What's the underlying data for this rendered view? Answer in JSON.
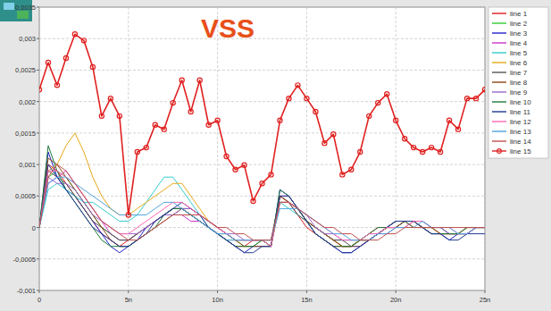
{
  "chart_data": {
    "type": "line",
    "title": "VSS",
    "x": [
      0,
      0.5,
      1,
      1.5,
      2,
      2.5,
      3,
      3.5,
      4,
      4.5,
      5,
      5.5,
      6,
      6.5,
      7,
      7.5,
      8,
      8.5,
      9,
      9.5,
      10,
      10.5,
      11,
      11.5,
      12,
      12.5,
      13,
      13.5,
      14,
      14.5,
      15,
      15.5,
      16,
      16.5,
      17,
      17.5,
      18,
      18.5,
      19,
      19.5,
      20,
      20.5,
      21,
      21.5,
      22,
      22.5,
      23,
      23.5,
      24,
      24.5,
      25
    ],
    "xlim": [
      0,
      25
    ],
    "xticks": [
      0,
      {
        "value": 5,
        "label": "5n"
      },
      {
        "value": 10,
        "label": "10n"
      },
      {
        "value": 15,
        "label": "15n"
      },
      {
        "value": 20,
        "label": "20n"
      },
      {
        "value": 25,
        "label": "25n"
      }
    ],
    "ylim": [
      -0.001,
      0.0035
    ],
    "yticks": [
      {
        "value": -0.001,
        "label": "-0,001"
      },
      {
        "value": -0.0005,
        "label": "-0,0005"
      },
      0,
      {
        "value": 0.0005,
        "label": "0,0005"
      },
      {
        "value": 0.001,
        "label": "0,001"
      },
      {
        "value": 0.0015,
        "label": "0,0015"
      },
      {
        "value": 0.002,
        "label": "0,002"
      },
      {
        "value": 0.0025,
        "label": "0,0025"
      },
      {
        "value": 0.003,
        "label": "0,003"
      },
      {
        "value": 0.0035,
        "label": "0,0035"
      }
    ],
    "grid": true,
    "legend": "right",
    "series": [
      {
        "name": "line 1",
        "color": "#e31a1c",
        "values": [
          0,
          0.001,
          0.0009,
          0.0007,
          0.0005,
          0.0003,
          0.0001,
          -0.0001,
          -0.0002,
          -0.0003,
          -0.0002,
          -0.0001,
          0,
          0.0001,
          0.0002,
          0.0003,
          0.0003,
          0.0002,
          0.0001,
          0,
          -0.0001,
          -0.0002,
          -0.0003,
          -0.0003,
          -0.0002,
          -0.0002,
          -0.0003,
          0.0005,
          0.0004,
          0.0002,
          0,
          -0.0001,
          -0.0002,
          -0.0003,
          -0.0003,
          -0.0003,
          -0.0002,
          -0.0001,
          0,
          0,
          0.0001,
          0.0001,
          0,
          0,
          -0.0001,
          -0.0001,
          -0.0001,
          -0.0001,
          0,
          0,
          0
        ]
      },
      {
        "name": "line 2",
        "color": "#33cc33",
        "values": [
          0,
          0.0008,
          0.0009,
          0.0008,
          0.0006,
          0.0004,
          0.0002,
          0,
          -0.0001,
          -0.0002,
          -0.0002,
          -0.0001,
          0,
          0.0001,
          0.0002,
          0.0002,
          0.0002,
          0.0002,
          0.0001,
          0,
          -0.0001,
          -0.0001,
          -0.0002,
          -0.0003,
          -0.0003,
          -0.0002,
          -0.0003,
          0.0004,
          0.0004,
          0.0003,
          0.0001,
          0,
          -0.0001,
          -0.0002,
          -0.0003,
          -0.0003,
          -0.0002,
          -0.0002,
          -0.0001,
          0,
          0,
          0.0001,
          0.0001,
          0,
          0,
          -0.0001,
          -0.0001,
          -0.0001,
          -0.0001,
          0,
          0
        ]
      },
      {
        "name": "line 3",
        "color": "#2222cc",
        "values": [
          0,
          0.0012,
          0.0008,
          0.0006,
          0.0005,
          0.0003,
          0.0001,
          -0.0001,
          -0.0003,
          -0.0004,
          -0.0003,
          -0.0002,
          0,
          0.0001,
          0.0002,
          0.0003,
          0.0003,
          0.0002,
          0.0001,
          0,
          -0.0001,
          -0.0002,
          -0.0003,
          -0.0004,
          -0.0003,
          -0.0003,
          -0.0003,
          0.0006,
          0.0005,
          0.0003,
          0.0001,
          -0.0001,
          -0.0002,
          -0.0003,
          -0.0004,
          -0.0004,
          -0.0003,
          -0.0002,
          -0.0001,
          0,
          0.0001,
          0.0001,
          0.0001,
          0,
          -0.0001,
          -0.0001,
          -0.0002,
          -0.0001,
          -0.0001,
          0,
          0
        ]
      },
      {
        "name": "line 4",
        "color": "#cc33cc",
        "values": [
          0,
          0.0007,
          0.0008,
          0.0009,
          0.0007,
          0.0005,
          0.0003,
          0.0001,
          -0.0001,
          -0.0002,
          -0.0002,
          -0.0001,
          0,
          0.0001,
          0.0002,
          0.0002,
          0.0002,
          0.0001,
          0.0001,
          0,
          -0.0001,
          -0.0002,
          -0.0002,
          -0.0002,
          -0.0002,
          -0.0002,
          -0.0003,
          0.0005,
          0.0005,
          0.0003,
          0.0001,
          0,
          -0.0001,
          -0.0002,
          -0.0003,
          -0.0003,
          -0.0003,
          -0.0002,
          -0.0001,
          0,
          0,
          0.0001,
          0.0001,
          0,
          0,
          -0.0001,
          -0.0001,
          -0.0001,
          0,
          0,
          0
        ]
      },
      {
        "name": "line 5",
        "color": "#33cccc",
        "values": [
          0,
          0.0006,
          0.0007,
          0.0006,
          0.0005,
          0.0004,
          0.0004,
          0.0003,
          0.0002,
          0.0001,
          0.0001,
          0.0002,
          0.0004,
          0.0006,
          0.0008,
          0.0008,
          0.0006,
          0.0004,
          0.0002,
          0,
          -0.0001,
          -0.0002,
          -0.0002,
          -0.0002,
          -0.0002,
          -0.0002,
          -0.0003,
          0.0004,
          0.0003,
          0.0002,
          0.0001,
          0,
          -0.0001,
          -0.0002,
          -0.0002,
          -0.0002,
          -0.0002,
          -0.0001,
          -0.0001,
          0,
          0,
          0.0001,
          0.0001,
          0,
          0,
          0,
          -0.0001,
          -0.0001,
          0,
          0,
          0
        ]
      },
      {
        "name": "line 6",
        "color": "#e6a817",
        "values": [
          0,
          0.0009,
          0.001,
          0.0013,
          0.0015,
          0.0012,
          0.0008,
          0.0005,
          0.0003,
          0.0002,
          0.0002,
          0.0003,
          0.0004,
          0.0005,
          0.0006,
          0.0007,
          0.0007,
          0.0005,
          0.0003,
          0.0001,
          0,
          -0.0001,
          -0.0002,
          -0.0002,
          -0.0002,
          -0.0002,
          -0.0003,
          0.0004,
          0.0004,
          0.0003,
          0.0001,
          0,
          -0.0001,
          -0.0002,
          -0.0003,
          -0.0003,
          -0.0002,
          -0.0002,
          -0.0001,
          0,
          0,
          0,
          0.0001,
          0,
          0,
          -0.0001,
          -0.0001,
          -0.0001,
          0,
          0,
          0
        ]
      },
      {
        "name": "line 7",
        "color": "#555555",
        "values": [
          0,
          0.0009,
          0.0008,
          0.0007,
          0.0005,
          0.0003,
          0.0001,
          0,
          -0.0001,
          -0.0002,
          -0.0002,
          -0.0001,
          0,
          0.0001,
          0.0002,
          0.0003,
          0.0003,
          0.0003,
          0.0002,
          0.0001,
          0,
          -0.0001,
          -0.0002,
          -0.0002,
          -0.0002,
          -0.0002,
          -0.0002,
          0.0005,
          0.0004,
          0.0002,
          0.0001,
          0,
          -0.0001,
          -0.0002,
          -0.0002,
          -0.0003,
          -0.0003,
          -0.0002,
          -0.0001,
          0,
          0,
          0.0001,
          0.0001,
          0.0001,
          0,
          0,
          -0.0001,
          -0.0001,
          -0.0001,
          0,
          0
        ]
      },
      {
        "name": "line 8",
        "color": "#8b4513",
        "values": [
          0,
          0.0011,
          0.001,
          0.0008,
          0.0006,
          0.0004,
          0.0002,
          0,
          -0.0002,
          -0.0003,
          -0.0003,
          -0.0002,
          -0.0001,
          0,
          0.0001,
          0.0002,
          0.0003,
          0.0002,
          0.0002,
          0.0001,
          0,
          -0.0001,
          -0.0002,
          -0.0003,
          -0.0003,
          -0.0003,
          -0.0003,
          0.0005,
          0.0004,
          0.0003,
          0.0001,
          0,
          -0.0001,
          -0.0002,
          -0.0003,
          -0.0003,
          -0.0002,
          -0.0002,
          -0.0001,
          0,
          0,
          0.0001,
          0.0001,
          0,
          0,
          -0.0001,
          -0.0001,
          -0.0001,
          -0.0001,
          0,
          0
        ]
      },
      {
        "name": "line 9",
        "color": "#9966cc",
        "values": [
          0,
          0.0008,
          0.0007,
          0.0007,
          0.0006,
          0.0004,
          0.0002,
          0.0001,
          0,
          -0.0001,
          -0.0001,
          -0.0001,
          0,
          0.0001,
          0.0002,
          0.0002,
          0.0003,
          0.0003,
          0.0002,
          0.0001,
          0,
          -0.0001,
          -0.0001,
          -0.0002,
          -0.0002,
          -0.0002,
          -0.0002,
          0.0004,
          0.0004,
          0.0003,
          0.0002,
          0,
          -0.0001,
          -0.0001,
          -0.0002,
          -0.0002,
          -0.0002,
          -0.0002,
          -0.0001,
          -0.0001,
          0,
          0,
          0.0001,
          0.0001,
          0,
          0,
          -0.0001,
          -0.0001,
          -0.0001,
          0,
          0
        ]
      },
      {
        "name": "line 10",
        "color": "#1f7a3a",
        "values": [
          0,
          0.0013,
          0.0009,
          0.0006,
          0.0004,
          0.0002,
          0,
          -0.0002,
          -0.0003,
          -0.0003,
          -0.0003,
          -0.0002,
          -0.0001,
          0,
          0.0002,
          0.0003,
          0.0003,
          0.0002,
          0.0001,
          0,
          -0.0001,
          -0.0002,
          -0.0003,
          -0.0003,
          -0.0003,
          -0.0002,
          -0.0003,
          0.0006,
          0.0005,
          0.0003,
          0.0001,
          -0.0001,
          -0.0002,
          -0.0003,
          -0.0003,
          -0.0003,
          -0.0002,
          -0.0001,
          0,
          0,
          0.0001,
          0.0001,
          0,
          0,
          -0.0001,
          -0.0001,
          -0.0001,
          -0.0001,
          0,
          0,
          0
        ]
      },
      {
        "name": "line 11",
        "color": "#1f3a93",
        "values": [
          0,
          0.001,
          0.0008,
          0.0006,
          0.0004,
          0.0002,
          0,
          -0.0001,
          -0.0002,
          -0.0003,
          -0.0003,
          -0.0002,
          -0.0001,
          0.0001,
          0.0002,
          0.0003,
          0.0004,
          0.0003,
          0.0002,
          0,
          -0.0001,
          -0.0002,
          -0.0003,
          -0.0004,
          -0.0004,
          -0.0003,
          -0.0003,
          0.0005,
          0.0005,
          0.0003,
          0.0001,
          -0.0001,
          -0.0002,
          -0.0003,
          -0.0004,
          -0.0004,
          -0.0003,
          -0.0002,
          -0.0001,
          0,
          0.0001,
          0.0001,
          0.0001,
          0,
          -0.0001,
          -0.0001,
          -0.0002,
          -0.0002,
          -0.0001,
          -0.0001,
          -0.0001
        ]
      },
      {
        "name": "line 12",
        "color": "#ff66b2",
        "values": [
          0,
          0.0009,
          0.0009,
          0.0008,
          0.0007,
          0.0005,
          0.0003,
          0.0001,
          0,
          -0.0001,
          -0.0001,
          0,
          0.0001,
          0.0002,
          0.0003,
          0.0004,
          0.0004,
          0.0003,
          0.0002,
          0.0001,
          0,
          -0.0001,
          -0.0002,
          -0.0002,
          -0.0002,
          -0.0002,
          -0.0003,
          0.0004,
          0.0004,
          0.0003,
          0.0002,
          0.0001,
          0,
          -0.0001,
          -0.0002,
          -0.0002,
          -0.0002,
          -0.0001,
          -0.0001,
          0,
          0,
          0,
          0.0001,
          0.0001,
          0,
          0,
          0,
          -0.0001,
          -0.0001,
          0,
          0
        ]
      },
      {
        "name": "line 13",
        "color": "#4fa3e0",
        "values": [
          0,
          0.0007,
          0.0008,
          0.0008,
          0.0007,
          0.0006,
          0.0005,
          0.0004,
          0.0003,
          0.0002,
          0.0002,
          0.0002,
          0.0002,
          0.0003,
          0.0004,
          0.0004,
          0.0003,
          0.0002,
          0.0001,
          0,
          -0.0001,
          -0.0001,
          -0.0002,
          -0.0002,
          -0.0002,
          -0.0002,
          -0.0002,
          0.0003,
          0.0003,
          0.0003,
          0.0002,
          0.0001,
          0,
          -0.0001,
          -0.0001,
          -0.0002,
          -0.0002,
          -0.0002,
          -0.0001,
          -0.0001,
          0,
          0,
          0,
          0.0001,
          0,
          0,
          0,
          -0.0001,
          -0.0001,
          0,
          0
        ]
      },
      {
        "name": "line 14",
        "color": "#c0504d",
        "values": [
          0,
          0.0008,
          0.001,
          0.0009,
          0.0007,
          0.0005,
          0.0003,
          0.0001,
          0,
          -0.0001,
          -0.0002,
          -0.0002,
          -0.0001,
          0,
          0.0001,
          0.0002,
          0.0002,
          0.0002,
          0.0002,
          0.0001,
          0,
          0,
          -0.0001,
          -0.0001,
          -0.0002,
          -0.0002,
          -0.0002,
          0.0004,
          0.0004,
          0.0003,
          0.0002,
          0.0001,
          0,
          0,
          -0.0001,
          -0.0001,
          -0.0002,
          -0.0002,
          -0.0002,
          -0.0001,
          -0.0001,
          0,
          0,
          0,
          0,
          0,
          0,
          0,
          0,
          0,
          0
        ]
      },
      {
        "name": "line 15",
        "color": "#e02020",
        "marker": "circle",
        "values": [
          0.00219,
          0.00262,
          0.00226,
          0.00269,
          0.00307,
          0.00297,
          0.00255,
          0.00177,
          0.00205,
          0.00177,
          0.0002,
          0.0012,
          0.00127,
          0.00163,
          0.00156,
          0.00198,
          0.00234,
          0.00184,
          0.00234,
          0.00163,
          0.0017,
          0.00113,
          0.00092,
          0.00099,
          0.00042,
          0.0007,
          0.00084,
          0.0017,
          0.00205,
          0.00226,
          0.00205,
          0.00184,
          0.00134,
          0.00148,
          0.00084,
          0.00092,
          0.0012,
          0.00177,
          0.00198,
          0.00212,
          0.0017,
          0.00141,
          0.00127,
          0.0012,
          0.00127,
          0.0012,
          0.0017,
          0.00156,
          0.00205,
          0.00205,
          0.00219
        ]
      }
    ]
  }
}
